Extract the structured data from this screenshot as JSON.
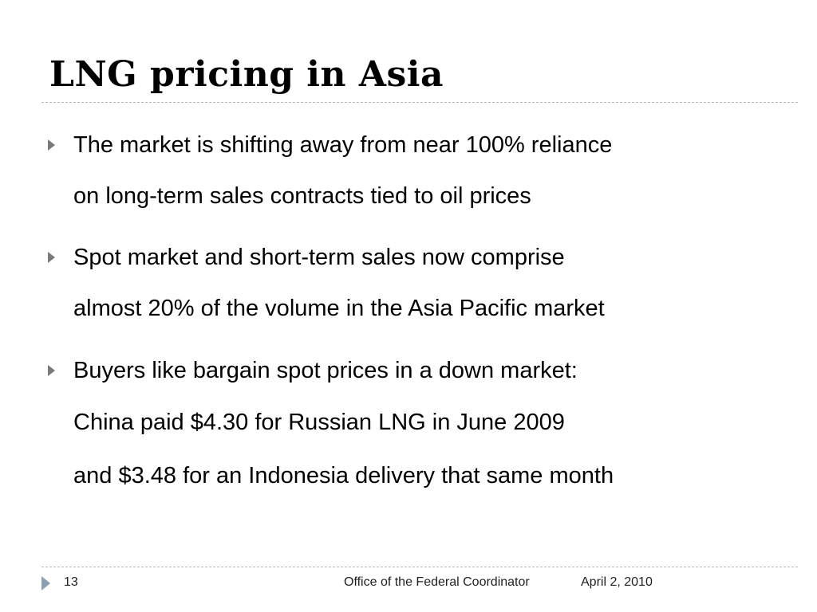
{
  "slide": {
    "title": "LNG pricing in Asia",
    "bullets": [
      {
        "lines": [
          "The market is shifting away from near 100% reliance",
          "on long-term sales contracts tied to oil prices"
        ]
      },
      {
        "lines": [
          "Spot market and short-term sales now comprise",
          "almost 20% of the volume in the Asia Pacific market"
        ]
      },
      {
        "lines": [
          "Buyers like bargain spot prices in a down market:",
          "China paid $4.30 for Russian LNG in June 2009",
          "and $3.48 for an Indonesia delivery that same month"
        ]
      }
    ]
  },
  "footer": {
    "page_number": "13",
    "organization": "Office of the Federal Coordinator",
    "date": "April 2, 2010"
  },
  "colors": {
    "bullet_marker": "#7a7a7a",
    "footer_marker": "#8c9fb3",
    "rule": "#b8b8b8"
  }
}
